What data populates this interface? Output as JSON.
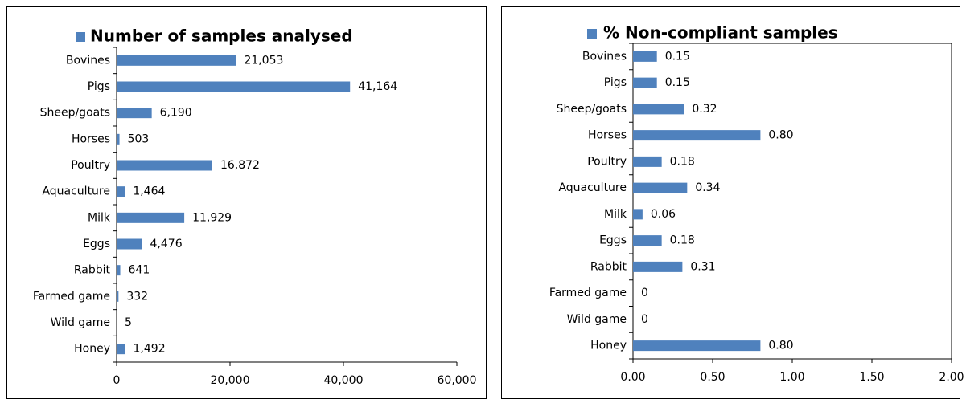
{
  "chart_data": [
    {
      "type": "bar",
      "orientation": "horizontal",
      "title": "Number of samples analysed",
      "color": "#4f81bd",
      "categories": [
        "Bovines",
        "Pigs",
        "Sheep/goats",
        "Horses",
        "Poultry",
        "Aquaculture",
        "Milk",
        "Eggs",
        "Rabbit",
        "Farmed game",
        "Wild game",
        "Honey"
      ],
      "values": [
        21053,
        41164,
        6190,
        503,
        16872,
        1464,
        11929,
        4476,
        641,
        332,
        5,
        1492
      ],
      "value_labels": [
        "21,053",
        "41,164",
        "6,190",
        "503",
        "16,872",
        "1,464",
        "11,929",
        "4,476",
        "641",
        "332",
        "5",
        "1,492"
      ],
      "xlim": [
        0,
        60000
      ],
      "xticks": [
        0,
        {
          "value": 20000,
          "label": "20,000"
        },
        {
          "value": 40000,
          "label": "40,000"
        },
        {
          "value": 60000,
          "label": "60,000"
        }
      ]
    },
    {
      "type": "bar",
      "orientation": "horizontal",
      "title": "% Non-compliant samples",
      "color": "#4f81bd",
      "categories": [
        "Bovines",
        "Pigs",
        "Sheep/goats",
        "Horses",
        "Poultry",
        "Aquaculture",
        "Milk",
        "Eggs",
        "Rabbit",
        "Farmed game",
        "Wild game",
        "Honey"
      ],
      "values": [
        0.15,
        0.15,
        0.32,
        0.8,
        0.18,
        0.34,
        0.06,
        0.18,
        0.31,
        0,
        0,
        0.8
      ],
      "value_labels": [
        "0.15",
        "0.15",
        "0.32",
        "0.80",
        "0.18",
        "0.34",
        "0.06",
        "0.18",
        "0.31",
        "0",
        "0",
        "0.80"
      ],
      "xlim": [
        0,
        2
      ],
      "xticks": [
        {
          "value": 0,
          "label": "0.00"
        },
        {
          "value": 0.5,
          "label": "0.50"
        },
        {
          "value": 1,
          "label": "1.00"
        },
        {
          "value": 1.5,
          "label": "1.50"
        },
        {
          "value": 2,
          "label": "2.00"
        }
      ]
    }
  ]
}
